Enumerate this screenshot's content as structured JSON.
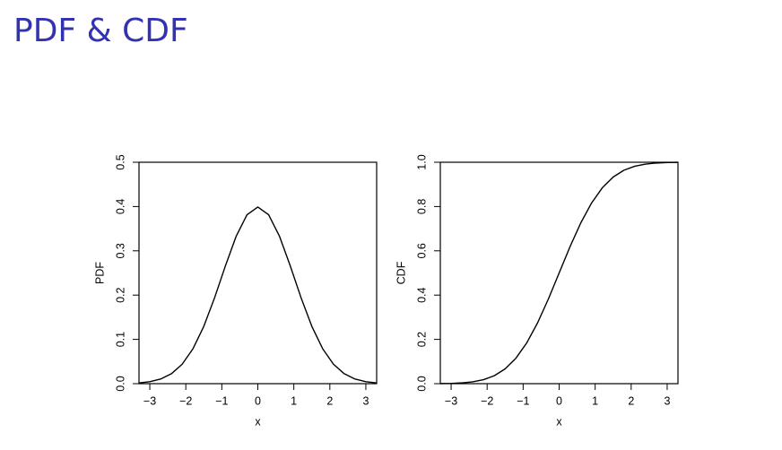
{
  "title": "PDF & CDF",
  "chart_data": [
    {
      "type": "line",
      "xlabel": "x",
      "ylabel": "PDF",
      "x": [
        -3.3,
        -3.0,
        -2.7,
        -2.4,
        -2.1,
        -1.8,
        -1.5,
        -1.2,
        -0.9,
        -0.6,
        -0.3,
        0,
        0.3,
        0.6,
        0.9,
        1.2,
        1.5,
        1.8,
        2.1,
        2.4,
        2.7,
        3.0,
        3.3
      ],
      "series": [
        {
          "color": "#000000",
          "values": [
            0.0017,
            0.0044,
            0.0104,
            0.0224,
            0.044,
            0.079,
            0.1295,
            0.1942,
            0.2661,
            0.3332,
            0.3814,
            0.3989,
            0.3814,
            0.3332,
            0.2661,
            0.1942,
            0.1295,
            0.079,
            0.044,
            0.0224,
            0.0104,
            0.0044,
            0.0017
          ]
        }
      ],
      "xlim": [
        -3.3,
        3.3
      ],
      "xticks": [
        {
          "value": -3,
          "label": "−3"
        },
        {
          "value": -2,
          "label": "−2"
        },
        {
          "value": -1,
          "label": "−1"
        },
        0,
        1,
        2,
        3
      ],
      "ylim": [
        0,
        0.5
      ],
      "yticks": [
        {
          "value": 0,
          "label": "0.0"
        },
        0.1,
        0.2,
        0.3,
        0.4,
        0.5
      ]
    },
    {
      "type": "line",
      "xlabel": "x",
      "ylabel": "CDF",
      "x": [
        -3.3,
        -3.0,
        -2.7,
        -2.4,
        -2.1,
        -1.8,
        -1.5,
        -1.2,
        -0.9,
        -0.6,
        -0.3,
        0,
        0.3,
        0.6,
        0.9,
        1.2,
        1.5,
        1.8,
        2.1,
        2.4,
        2.7,
        3.0,
        3.3
      ],
      "series": [
        {
          "color": "#000000",
          "values": [
            0.0005,
            0.0013,
            0.0035,
            0.0082,
            0.0179,
            0.0359,
            0.0668,
            0.1151,
            0.1841,
            0.2743,
            0.3821,
            0.5,
            0.6179,
            0.7257,
            0.8159,
            0.8849,
            0.9332,
            0.9641,
            0.9821,
            0.9918,
            0.9965,
            0.9987,
            0.9995
          ]
        }
      ],
      "xlim": [
        -3.3,
        3.3
      ],
      "xticks": [
        {
          "value": -3,
          "label": "−3"
        },
        {
          "value": -2,
          "label": "−2"
        },
        {
          "value": -1,
          "label": "−1"
        },
        0,
        1,
        2,
        3
      ],
      "ylim": [
        0,
        1
      ],
      "yticks": [
        {
          "value": 0,
          "label": "0.0"
        },
        0.2,
        0.4,
        0.6,
        0.8,
        {
          "value": 1,
          "label": "1.0"
        }
      ]
    }
  ]
}
